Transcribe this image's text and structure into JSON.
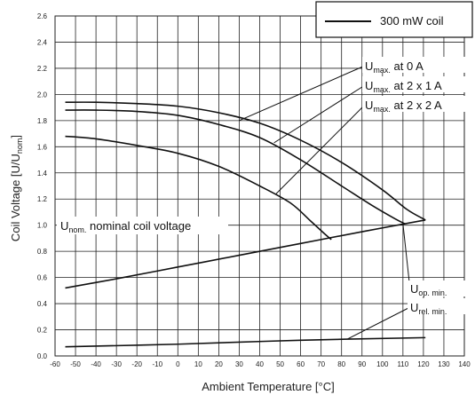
{
  "chart_data": {
    "type": "line",
    "xlabel": "Ambient Temperature [°C]",
    "ylabel_main": "Coil Voltage [U/U",
    "ylabel_sub": "nom",
    "ylabel_end": "]",
    "xlim": [
      -60,
      140
    ],
    "ylim": [
      0.0,
      2.6
    ],
    "x_ticks": [
      -60,
      -50,
      -40,
      -30,
      -20,
      -10,
      0,
      10,
      20,
      30,
      40,
      50,
      60,
      70,
      80,
      90,
      100,
      110,
      120,
      130,
      140
    ],
    "y_ticks": [
      "0.0",
      "0.2",
      "0.4",
      "0.6",
      "0.8",
      "1.0",
      "1.2",
      "1.4",
      "1.6",
      "1.8",
      "2.0",
      "2.2",
      "2.4",
      "2.6"
    ],
    "grid": true,
    "legend": {
      "position": "top-right",
      "entries": [
        "300 mW coil"
      ]
    },
    "series": [
      {
        "key": "umax_0a",
        "x": [
          -55,
          -40,
          -20,
          0,
          20,
          40,
          60,
          80,
          100,
          112,
          121
        ],
        "y": [
          1.94,
          1.94,
          1.93,
          1.91,
          1.86,
          1.78,
          1.65,
          1.48,
          1.27,
          1.12,
          1.04
        ]
      },
      {
        "key": "umax_2x1a",
        "x": [
          -55,
          -40,
          -20,
          0,
          20,
          40,
          60,
          80,
          95,
          106,
          111
        ],
        "y": [
          1.88,
          1.88,
          1.87,
          1.84,
          1.77,
          1.67,
          1.5,
          1.3,
          1.15,
          1.05,
          1.01
        ]
      },
      {
        "key": "umax_2x2a",
        "x": [
          -55,
          -40,
          -20,
          0,
          20,
          40,
          55,
          65,
          72,
          75
        ],
        "y": [
          1.68,
          1.66,
          1.61,
          1.55,
          1.45,
          1.3,
          1.17,
          1.03,
          0.93,
          0.89
        ]
      },
      {
        "key": "uop_min",
        "x": [
          -55,
          -30,
          0,
          30,
          60,
          90,
          121
        ],
        "y": [
          0.52,
          0.59,
          0.68,
          0.77,
          0.86,
          0.95,
          1.04
        ]
      },
      {
        "key": "urel_min",
        "x": [
          -55,
          0,
          60,
          121
        ],
        "y": [
          0.07,
          0.09,
          0.12,
          0.14
        ]
      }
    ],
    "annotations": {
      "umax_0a": {
        "main": "U",
        "sub": "max.",
        "rest": " at 0 A"
      },
      "umax_2x1a": {
        "main": "U",
        "sub": "max.",
        "rest": " at 2 x 1 A"
      },
      "umax_2x2a": {
        "main": "U",
        "sub": "max.",
        "rest": " at 2 x 2 A"
      },
      "unom": {
        "main": "U",
        "sub": "nom.",
        "rest": " nominal coil voltage"
      },
      "uop_min": {
        "main": "U",
        "sub": "op. min.",
        "rest": ""
      },
      "urel_min": {
        "main": "U",
        "sub": "rel. min.",
        "rest": ""
      }
    },
    "annotation_targets": {
      "umax_0a": [
        30,
        1.8
      ],
      "umax_2x1a": [
        47,
        1.63
      ],
      "umax_2x2a": [
        48,
        1.24
      ],
      "uop_min": [
        110,
        1.01
      ],
      "urel_min": [
        83,
        0.13
      ]
    }
  }
}
